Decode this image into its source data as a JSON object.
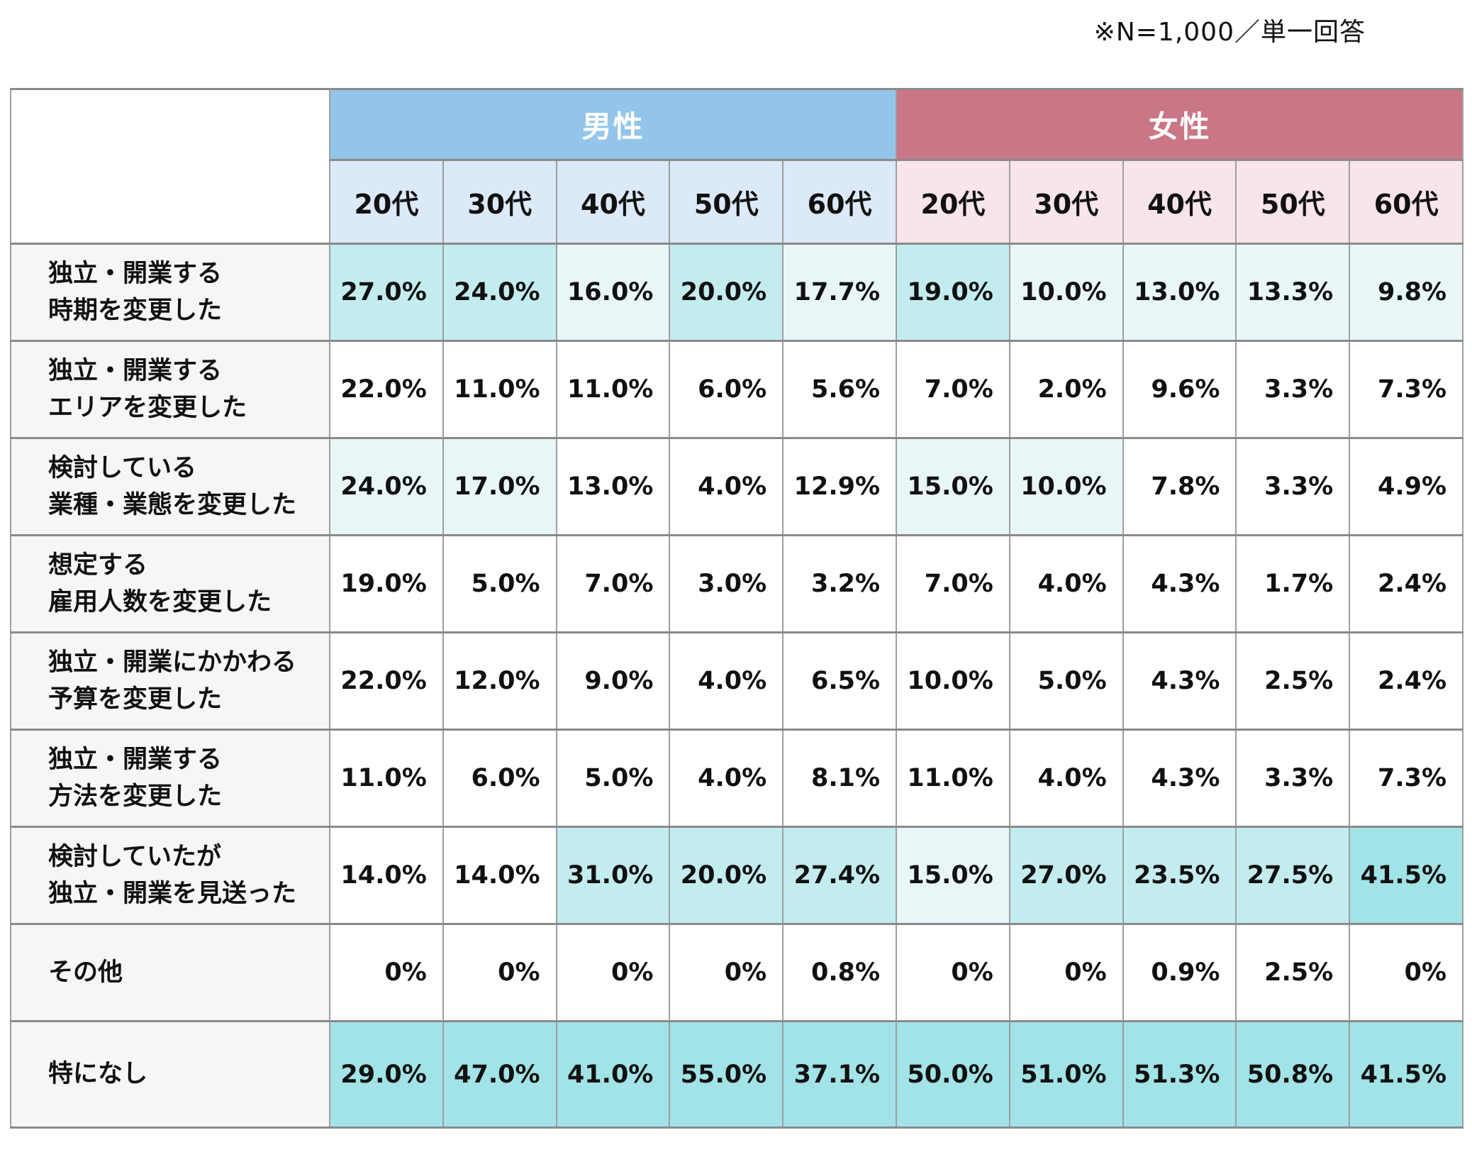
{
  "note": "※N=1,000／単一回答",
  "table": {
    "groups": [
      {
        "label": "男性",
        "header_bg": "#93c5ea",
        "sub_header_bg": "#dbe9f8"
      },
      {
        "label": "女性",
        "header_bg": "#c97686",
        "sub_header_bg": "#f8e5e9"
      }
    ],
    "age_headers": [
      "20代",
      "30代",
      "40代",
      "50代",
      "60代"
    ],
    "highlight_colors": {
      "light": "#e8f6f8",
      "medium": "#c3ecef",
      "dark": "#a2e3e7"
    },
    "rows": [
      {
        "label_lines": [
          "独立・開業する",
          "時期を変更した"
        ],
        "display": [
          "27.0%",
          "24.0%",
          "16.0%",
          "20.0%",
          "17.7%",
          "19.0%",
          "10.0%",
          "13.0%",
          "13.3%",
          "9.8%"
        ],
        "highlights": [
          "medium",
          "medium",
          "light",
          "medium",
          "light",
          "medium",
          "light",
          "light",
          "light",
          "light"
        ]
      },
      {
        "label_lines": [
          "独立・開業する",
          "エリアを変更した"
        ],
        "display": [
          "22.0%",
          "11.0%",
          "11.0%",
          "6.0%",
          "5.6%",
          "7.0%",
          "2.0%",
          "9.6%",
          "3.3%",
          "7.3%"
        ],
        "highlights": [
          null,
          null,
          null,
          null,
          null,
          null,
          null,
          null,
          null,
          null
        ]
      },
      {
        "label_lines": [
          "検討している",
          "業種・業態を変更した"
        ],
        "display": [
          "24.0%",
          "17.0%",
          "13.0%",
          "4.0%",
          "12.9%",
          "15.0%",
          "10.0%",
          "7.8%",
          "3.3%",
          "4.9%"
        ],
        "highlights": [
          "light",
          "light",
          null,
          null,
          null,
          "light",
          "light",
          null,
          null,
          null
        ]
      },
      {
        "label_lines": [
          "想定する",
          "雇用人数を変更した"
        ],
        "display": [
          "19.0%",
          "5.0%",
          "7.0%",
          "3.0%",
          "3.2%",
          "7.0%",
          "4.0%",
          "4.3%",
          "1.7%",
          "2.4%"
        ],
        "highlights": [
          null,
          null,
          null,
          null,
          null,
          null,
          null,
          null,
          null,
          null
        ]
      },
      {
        "label_lines": [
          "独立・開業にかかわる",
          "予算を変更した"
        ],
        "display": [
          "22.0%",
          "12.0%",
          "9.0%",
          "4.0%",
          "6.5%",
          "10.0%",
          "5.0%",
          "4.3%",
          "2.5%",
          "2.4%"
        ],
        "highlights": [
          null,
          null,
          null,
          null,
          null,
          null,
          null,
          null,
          null,
          null
        ]
      },
      {
        "label_lines": [
          "独立・開業する",
          "方法を変更した"
        ],
        "display": [
          "11.0%",
          "6.0%",
          "5.0%",
          "4.0%",
          "8.1%",
          "11.0%",
          "4.0%",
          "4.3%",
          "3.3%",
          "7.3%"
        ],
        "highlights": [
          null,
          null,
          null,
          null,
          null,
          null,
          null,
          null,
          null,
          null
        ]
      },
      {
        "label_lines": [
          "検討していたが",
          "独立・開業を見送った"
        ],
        "display": [
          "14.0%",
          "14.0%",
          "31.0%",
          "20.0%",
          "27.4%",
          "15.0%",
          "27.0%",
          "23.5%",
          "27.5%",
          "41.5%"
        ],
        "highlights": [
          null,
          null,
          "medium",
          "medium",
          "medium",
          "light",
          "medium",
          "medium",
          "medium",
          "dark"
        ]
      },
      {
        "label_lines": [
          "その他"
        ],
        "display": [
          "0%",
          "0%",
          "0%",
          "0%",
          "0.8%",
          "0%",
          "0%",
          "0.9%",
          "2.5%",
          "0%"
        ],
        "highlights": [
          null,
          null,
          null,
          null,
          null,
          null,
          null,
          null,
          null,
          null
        ]
      },
      {
        "label_lines": [
          "特になし"
        ],
        "display": [
          "29.0%",
          "47.0%",
          "41.0%",
          "55.0%",
          "37.1%",
          "50.0%",
          "51.0%",
          "51.3%",
          "50.8%",
          "41.5%"
        ],
        "highlights": [
          "dark",
          "dark",
          "dark",
          "dark",
          "dark",
          "dark",
          "dark",
          "dark",
          "dark",
          "dark"
        ]
      }
    ]
  },
  "chart_data": {
    "type": "table",
    "note": "※N=1,000／単一回答",
    "unit": "%",
    "column_groups": [
      "男性",
      "女性"
    ],
    "columns": [
      "男性 20代",
      "男性 30代",
      "男性 40代",
      "男性 50代",
      "男性 60代",
      "女性 20代",
      "女性 30代",
      "女性 40代",
      "女性 50代",
      "女性 60代"
    ],
    "rows": [
      {
        "label": "独立・開業する時期を変更した",
        "values": [
          27.0,
          24.0,
          16.0,
          20.0,
          17.7,
          19.0,
          10.0,
          13.0,
          13.3,
          9.8
        ]
      },
      {
        "label": "独立・開業するエリアを変更した",
        "values": [
          22.0,
          11.0,
          11.0,
          6.0,
          5.6,
          7.0,
          2.0,
          9.6,
          3.3,
          7.3
        ]
      },
      {
        "label": "検討している業種・業態を変更した",
        "values": [
          24.0,
          17.0,
          13.0,
          4.0,
          12.9,
          15.0,
          10.0,
          7.8,
          3.3,
          4.9
        ]
      },
      {
        "label": "想定する雇用人数を変更した",
        "values": [
          19.0,
          5.0,
          7.0,
          3.0,
          3.2,
          7.0,
          4.0,
          4.3,
          1.7,
          2.4
        ]
      },
      {
        "label": "独立・開業にかかわる予算を変更した",
        "values": [
          22.0,
          12.0,
          9.0,
          4.0,
          6.5,
          10.0,
          5.0,
          4.3,
          2.5,
          2.4
        ]
      },
      {
        "label": "独立・開業する方法を変更した",
        "values": [
          11.0,
          6.0,
          5.0,
          4.0,
          8.1,
          11.0,
          4.0,
          4.3,
          3.3,
          7.3
        ]
      },
      {
        "label": "検討していたが独立・開業を見送った",
        "values": [
          14.0,
          14.0,
          31.0,
          20.0,
          27.4,
          15.0,
          27.0,
          23.5,
          27.5,
          41.5
        ]
      },
      {
        "label": "その他",
        "values": [
          0,
          0,
          0,
          0,
          0.8,
          0,
          0,
          0.9,
          2.5,
          0
        ]
      },
      {
        "label": "特になし",
        "values": [
          29.0,
          47.0,
          41.0,
          55.0,
          37.1,
          50.0,
          51.0,
          51.3,
          50.8,
          41.5
        ]
      }
    ],
    "layout_hints": {
      "shading": "top 3 values per column tinted teal: rank1 dark, rank2 medium, rank3 light",
      "male_header_color": "#93c5ea",
      "female_header_color": "#c97686"
    }
  }
}
